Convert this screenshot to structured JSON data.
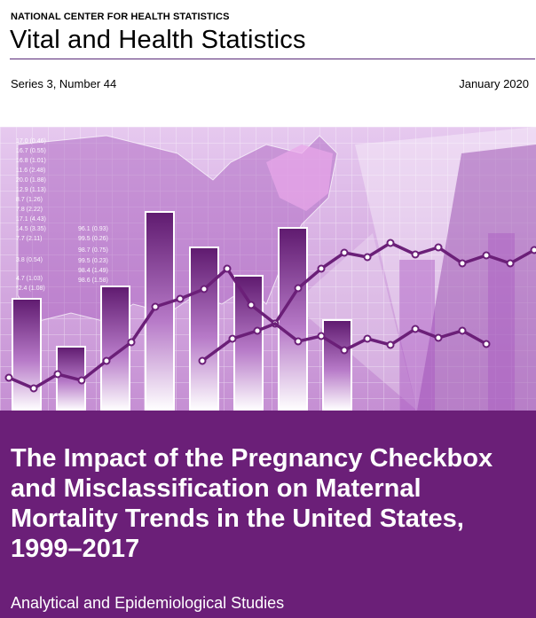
{
  "header": {
    "agency": "NATIONAL CENTER FOR HEALTH STATISTICS",
    "series_title": "Vital and Health Statistics",
    "series_number": "Series 3, Number 44",
    "date": "January 2020"
  },
  "cover_art": {
    "table_column_a": [
      "17.0 (0.46)",
      "16.7 (0.55)",
      "16.8 (1.01)",
      "11.6 (2.48)",
      "20.0 (1.88)",
      "12.9 (1.13)",
      "8.7 (1.26)",
      "7.8 (2.22)",
      "17.1 (4.43)",
      "14.5 (3.35)",
      "7.7 (2.11)",
      "3.8 (0.54)",
      "4.7 (1.03)",
      "*2.4 (1.08)"
    ],
    "table_column_b": [
      "96.1 (0.93)",
      "99.5 (0.26)",
      "98.7 (0.75)",
      "99.5 (0.23)",
      "98.4 (1.49)",
      "98.6 (1.58)"
    ],
    "accent_color": "#6b1f78",
    "light_color": "#c79ad6"
  },
  "report": {
    "title": "The Impact of the Pregnancy Checkbox and Misclassification on Maternal Mortality Trends in the United States, 1999–2017",
    "category": "Analytical and Epidemiological Studies"
  }
}
